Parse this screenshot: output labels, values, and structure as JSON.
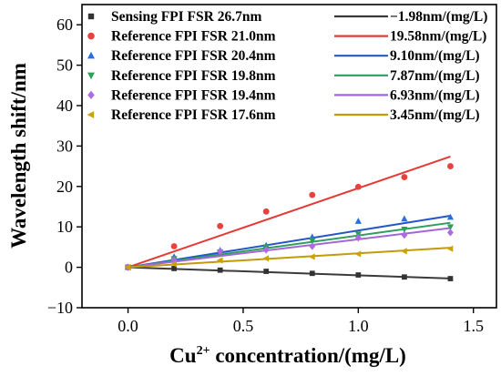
{
  "chart_data": {
    "type": "scatter",
    "xlabel_main": "Cu",
    "xlabel_sup": "2+",
    "xlabel_rest": " concentration/(mg/L)",
    "ylabel": "Wavelength shift/nm",
    "xlim": [
      -0.2,
      1.6
    ],
    "ylim": [
      -10,
      65
    ],
    "xticks": [
      0.0,
      0.5,
      1.0,
      1.5
    ],
    "xtick_labels": [
      "0.0",
      "0.5",
      "1.0",
      "1.5"
    ],
    "yticks": [
      -10,
      0,
      10,
      20,
      30,
      40,
      50,
      60
    ],
    "ytick_labels": [
      "−10",
      "0",
      "10",
      "20",
      "30",
      "40",
      "50",
      "60"
    ],
    "x": [
      0.0,
      0.2,
      0.4,
      0.6,
      0.8,
      1.0,
      1.2,
      1.4
    ],
    "series": [
      {
        "name": "Sensing FPI FSR 26.7nm",
        "fit_label": "−1.98nm/(mg/L)",
        "slope": -1.98,
        "marker": "square",
        "color": "#333333",
        "line_color": "#3a3a3a",
        "values": [
          0,
          -0.3,
          -0.7,
          -1.0,
          -1.5,
          -1.9,
          -2.4,
          -2.8
        ]
      },
      {
        "name": "Reference FPI FSR 21.0nm",
        "fit_label": "19.58nm/(mg/L)",
        "slope": 19.58,
        "marker": "circle",
        "color": "#e8413f",
        "line_color": "#e53935",
        "values": [
          0,
          5.2,
          10.2,
          13.8,
          17.9,
          19.9,
          22.3,
          25.0
        ]
      },
      {
        "name": "Reference FPI FSR 20.4nm",
        "fit_label": "9.10nm/(mg/L)",
        "slope": 9.1,
        "marker": "triangle-up",
        "color": "#2a6fdb",
        "line_color": "#2457c5",
        "values": [
          0,
          2.6,
          4.2,
          5.4,
          7.5,
          11.4,
          12.0,
          12.4
        ]
      },
      {
        "name": "Reference FPI FSR 19.8nm",
        "fit_label": "7.87nm/(mg/L)",
        "slope": 7.87,
        "marker": "triangle-down",
        "color": "#2ca05a",
        "line_color": "#2e9e5b",
        "values": [
          0,
          2.1,
          3.8,
          5.0,
          6.6,
          8.2,
          9.4,
          10.0
        ]
      },
      {
        "name": "Reference FPI FSR 19.4nm",
        "fit_label": "6.93nm/(mg/L)",
        "slope": 6.93,
        "marker": "diamond",
        "color": "#b06ae0",
        "line_color": "#a366d8",
        "values": [
          0,
          1.8,
          4.0,
          4.3,
          5.2,
          7.3,
          8.0,
          8.6
        ]
      },
      {
        "name": "Reference FPI FSR 17.6nm",
        "fit_label": "3.45nm/(mg/L)",
        "slope": 3.45,
        "marker": "triangle-left",
        "color": "#c9a400",
        "line_color": "#c29a0a",
        "values": [
          0,
          0.8,
          1.7,
          2.2,
          2.6,
          3.3,
          4.0,
          4.6
        ]
      }
    ]
  }
}
